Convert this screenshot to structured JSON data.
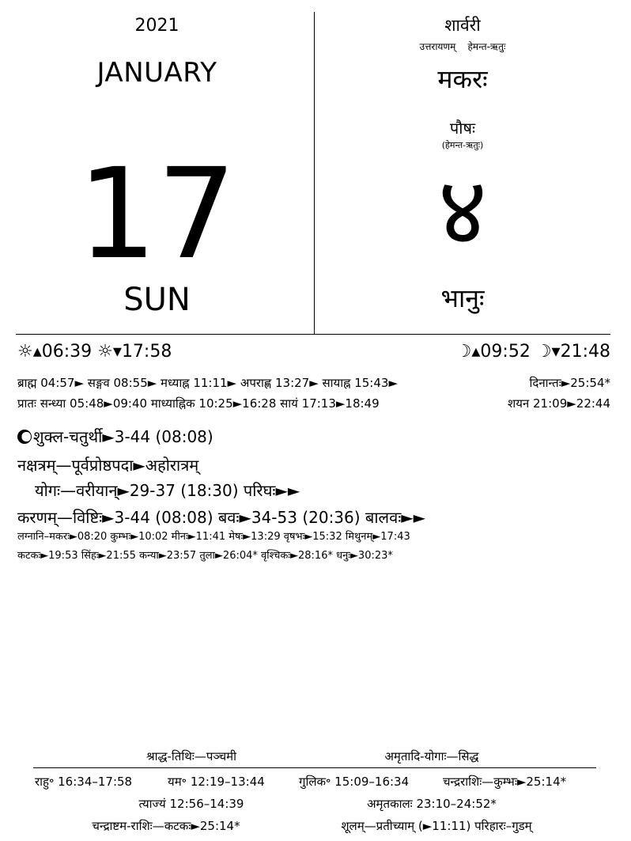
{
  "header": {
    "year": "2021",
    "month": "JANUARY",
    "day": "17",
    "weekday": "SUN",
    "samvatsara": "शार्वरी",
    "ayana": "उत्तरायणम्",
    "ritu": "हेमन्त-ऋतुः",
    "solar_rashi": "मकरः",
    "lunar_month": "पौषः",
    "lunar_ritu": "(हेमन्त-ऋतुः)",
    "solar_date_glyph": "४",
    "vasara": "भानुः"
  },
  "sun_moon": {
    "sunrise": "☼▴06:39",
    "sunset": "☼▾17:58",
    "moonrise": "☽▴09:52",
    "moonset": "☽▾21:48"
  },
  "day_parts": {
    "line1_left": "ब्राह्म 04:57► सङ्गव 08:55► मध्याह्न 11:11► अपराह्ण 13:27► सायाह्न 15:43►",
    "line1_right": "दिनान्तः►25:54*",
    "line2_left": "प्रातः सन्ध्या 05:48►09:40 माध्याह्निक 10:25►16:28 सायं 17:13►18:49",
    "line2_right": "शयन 21:09►22:44"
  },
  "panchanga": {
    "tithi": "शुक्ल-चतुर्थी►3-44 (08:08)",
    "nakshatra": "नक्षत्रम्—पूर्वप्रोष्ठपदा►अहोरात्रम्",
    "yoga": "योगः—वरीयान्►29-37 (18:30)  परिघः►►",
    "karana": "करणम्—विष्टिः►3-44 (08:08)  बवः►34-53 (20:36)  बालवः►►",
    "lagna1": "लग्नानि–मकरः►08:20  कुम्भः►10:02  मीनः►11:41  मेषः►13:29  वृषभः►15:32  मिथुनम्►17:43",
    "lagna2": "कटकः►19:53  सिंहः►21:55  कन्या►23:57  तुला►26:04*  वृश्चिकः►28:16*  धनुः►30:23*"
  },
  "footer": {
    "shraddha": "श्राद्ध-तिथिः—पञ्चमी",
    "amritadi": "अमृतादि-योगाः—सिद्ध",
    "rahu": "राहु॰ 16:34–17:58",
    "yama": "यम॰ 12:19–13:44",
    "gulika": "गुलिक॰ 15:09–16:34",
    "chandra_rashi": "चन्द्रराशिः—कुम्भः►25:14*",
    "tyajya": "त्याज्यं 12:56–14:39",
    "amritakala": "अमृतकालः 23:10–24:52*",
    "chandrashtama": "चन्द्राष्टम-राशिः—कटकः►25:14*",
    "shula": "शूलम्—प्रतीच्याम् (►11:11) परिहारः–गुडम्"
  }
}
